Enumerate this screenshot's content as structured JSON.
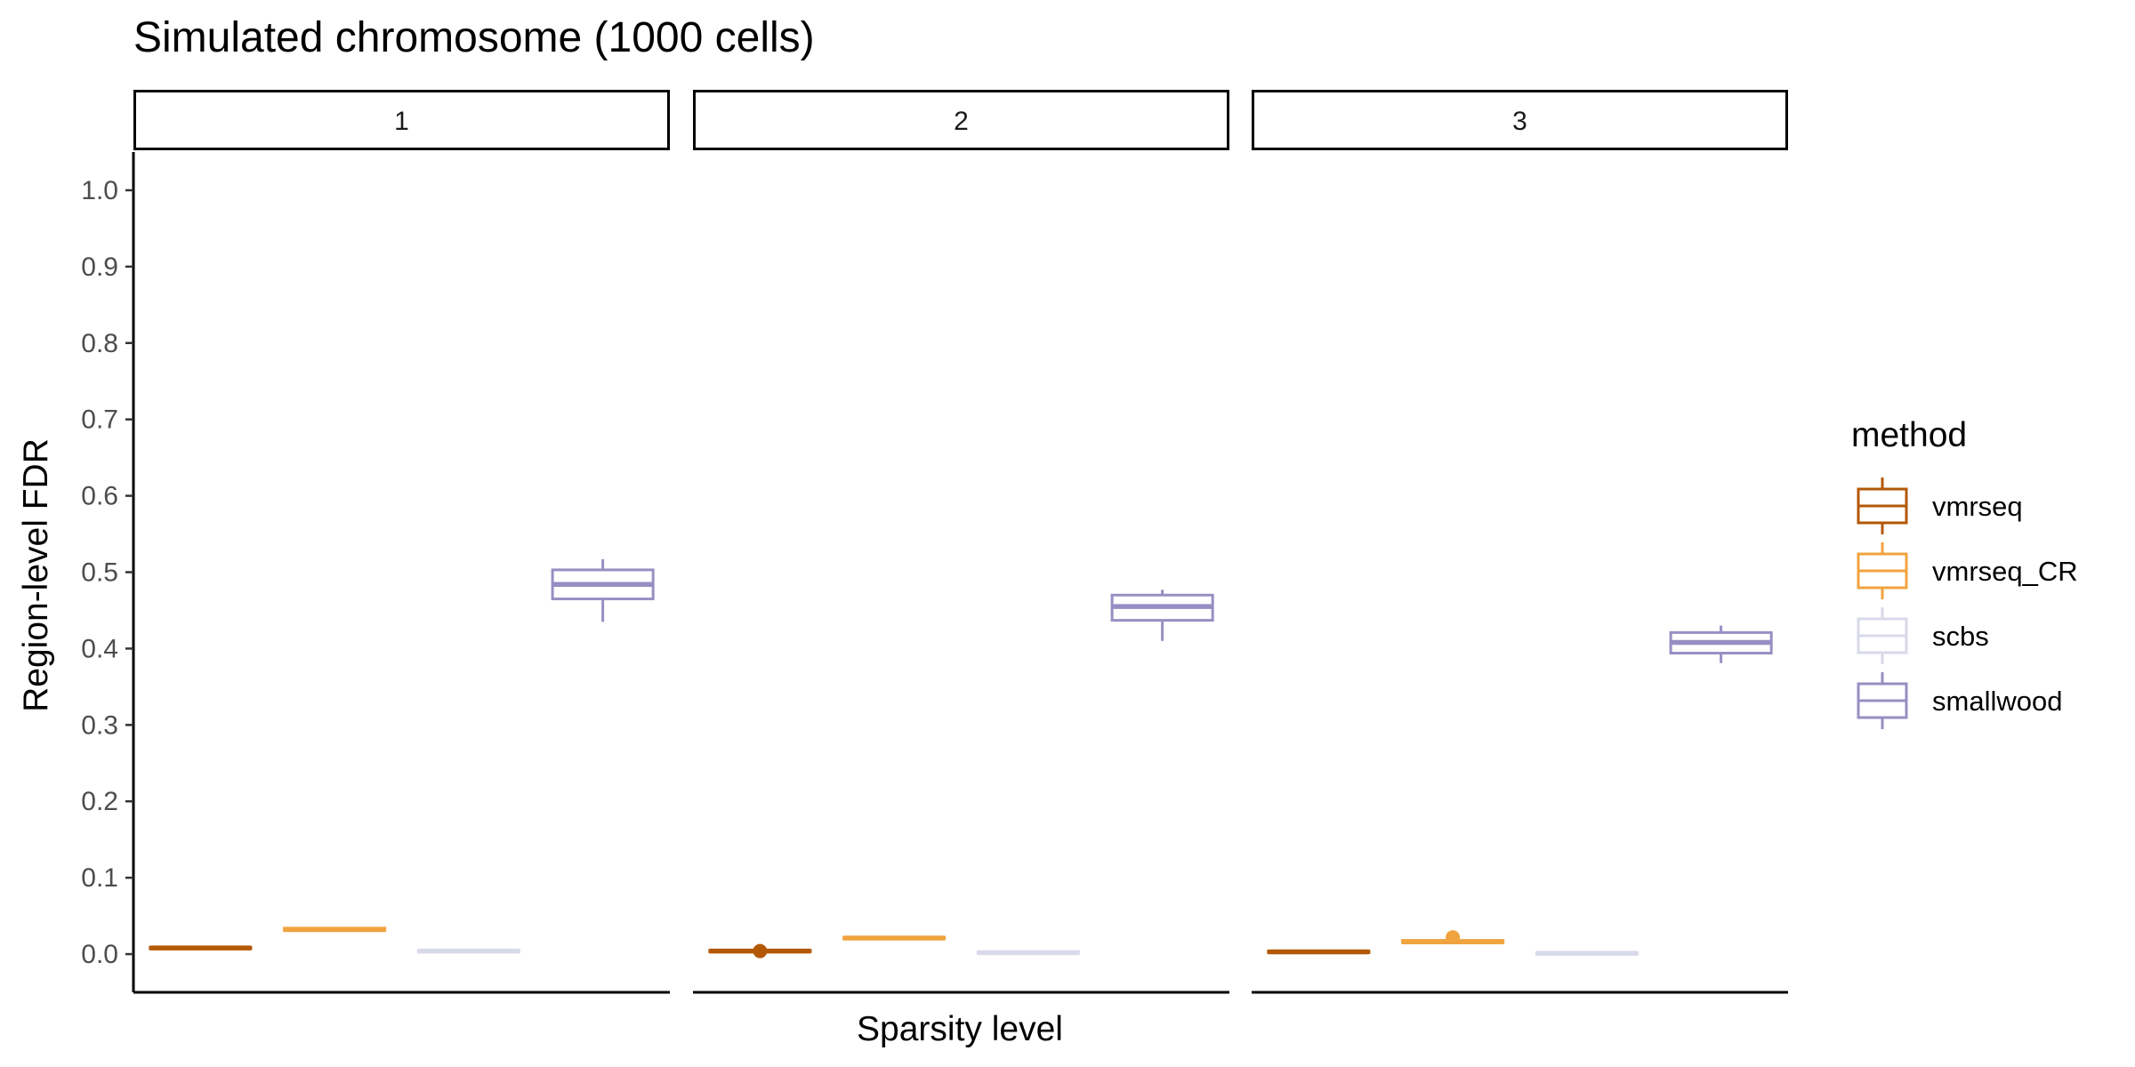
{
  "chart_data": {
    "type": "box",
    "title": "Simulated chromosome (1000 cells)",
    "xlabel": "Sparsity level",
    "ylabel": "Region-level FDR",
    "ylim": [
      -0.05,
      1.05
    ],
    "y_ticks": [
      0.0,
      0.1,
      0.2,
      0.3,
      0.4,
      0.5,
      0.6,
      0.7,
      0.8,
      0.9,
      1.0
    ],
    "y_tick_labels": [
      "0.0",
      "0.1",
      "0.2",
      "0.3",
      "0.4",
      "0.5",
      "0.6",
      "0.7",
      "0.8",
      "0.9",
      "1.0"
    ],
    "facets": [
      "1",
      "2",
      "3"
    ],
    "grid": false,
    "legend": {
      "title": "method",
      "position": "right",
      "entries": [
        {
          "name": "vmrseq",
          "color": "#B35806"
        },
        {
          "name": "vmrseq_CR",
          "color": "#F1A340"
        },
        {
          "name": "scbs",
          "color": "#D8DAEB"
        },
        {
          "name": "smallwood",
          "color": "#998EC3"
        }
      ]
    },
    "series": [
      {
        "name": "vmrseq",
        "color": "#B35806",
        "boxes": [
          {
            "facet": "1",
            "min": 0.007,
            "q1": 0.007,
            "median": 0.008,
            "q3": 0.009,
            "max": 0.009,
            "outliers": []
          },
          {
            "facet": "2",
            "min": 0.003,
            "q1": 0.003,
            "median": 0.004,
            "q3": 0.005,
            "max": 0.006,
            "outliers": [
              0.004
            ]
          },
          {
            "facet": "3",
            "min": 0.002,
            "q1": 0.002,
            "median": 0.003,
            "q3": 0.004,
            "max": 0.004,
            "outliers": []
          }
        ]
      },
      {
        "name": "vmrseq_CR",
        "color": "#F1A340",
        "boxes": [
          {
            "facet": "1",
            "min": 0.03,
            "q1": 0.031,
            "median": 0.032,
            "q3": 0.034,
            "max": 0.035,
            "outliers": []
          },
          {
            "facet": "2",
            "min": 0.02,
            "q1": 0.02,
            "median": 0.021,
            "q3": 0.022,
            "max": 0.023,
            "outliers": []
          },
          {
            "facet": "3",
            "min": 0.014,
            "q1": 0.015,
            "median": 0.016,
            "q3": 0.018,
            "max": 0.019,
            "outliers": [
              0.022
            ]
          }
        ]
      },
      {
        "name": "scbs",
        "color": "#D8DAEB",
        "boxes": [
          {
            "facet": "1",
            "min": 0.002,
            "q1": 0.003,
            "median": 0.004,
            "q3": 0.005,
            "max": 0.005,
            "outliers": []
          },
          {
            "facet": "2",
            "min": 0.001,
            "q1": 0.001,
            "median": 0.002,
            "q3": 0.003,
            "max": 0.003,
            "outliers": []
          },
          {
            "facet": "3",
            "min": 0.0,
            "q1": 0.0,
            "median": 0.001,
            "q3": 0.002,
            "max": 0.002,
            "outliers": []
          }
        ]
      },
      {
        "name": "smallwood",
        "color": "#998EC3",
        "boxes": [
          {
            "facet": "1",
            "min": 0.435,
            "q1": 0.465,
            "median": 0.484,
            "q3": 0.503,
            "max": 0.517,
            "outliers": []
          },
          {
            "facet": "2",
            "min": 0.41,
            "q1": 0.437,
            "median": 0.455,
            "q3": 0.47,
            "max": 0.477,
            "outliers": []
          },
          {
            "facet": "3",
            "min": 0.381,
            "q1": 0.394,
            "median": 0.408,
            "q3": 0.421,
            "max": 0.43,
            "outliers": []
          }
        ]
      }
    ]
  }
}
